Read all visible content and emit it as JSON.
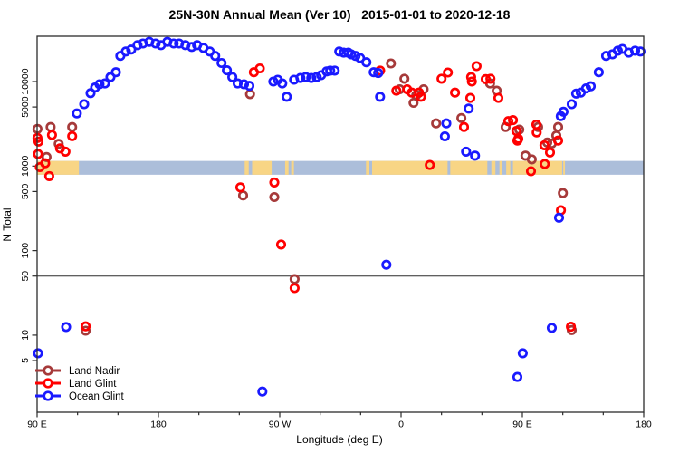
{
  "chart_data": {
    "type": "scatter",
    "title": "25N-30N Annual Mean (Ver 10)   2015-01-01 to 2020-12-18",
    "xlabel": "Longitude (deg E)",
    "ylabel": "N Total",
    "y_scale": "log",
    "x_domain": [
      90,
      540
    ],
    "y_domain": [
      1.225,
      34356
    ],
    "x_ticks": [
      {
        "value": 90,
        "label": "90 E"
      },
      {
        "value": 180,
        "label": "180"
      },
      {
        "value": 270,
        "label": "90 W"
      },
      {
        "value": 360,
        "label": "0"
      },
      {
        "value": 450,
        "label": "90 E"
      },
      {
        "value": 540,
        "label": "180"
      }
    ],
    "x_minor_ticks": [
      120,
      150,
      210,
      240,
      300,
      330,
      390,
      420,
      480,
      510
    ],
    "y_ticks": [
      5,
      10,
      50,
      100,
      500,
      1000,
      5000,
      10000
    ],
    "reference_line": 50,
    "map_band": {
      "value_range": [
        790,
        1150
      ],
      "ocean_color": "#ACBEDA",
      "land_color": "#F8D585",
      "land_segments": [
        [
          90,
          121
        ],
        [
          244,
          247
        ],
        [
          249.5,
          264
        ],
        [
          274,
          276.5
        ],
        [
          278.5,
          280.5
        ],
        [
          334,
          336.5
        ],
        [
          338.5,
          394.5
        ],
        [
          396.5,
          424
        ],
        [
          427,
          430
        ],
        [
          433,
          435
        ],
        [
          438,
          441
        ],
        [
          443,
          479.5
        ],
        [
          480.3,
          481.6
        ]
      ]
    },
    "series": [
      {
        "name": "Land Nadir",
        "color": "#A63A3A",
        "points": [
          [
            90.3,
            2750
          ],
          [
            97,
            1280
          ],
          [
            100,
            2900
          ],
          [
            106,
            1830
          ],
          [
            116,
            2900
          ],
          [
            126,
            11.3
          ],
          [
            248,
            7100
          ],
          [
            242.8,
            450
          ],
          [
            266,
            430
          ],
          [
            281,
            46
          ],
          [
            352.5,
            16400
          ],
          [
            359,
            8100
          ],
          [
            362.5,
            10800
          ],
          [
            369.3,
            5600
          ],
          [
            371.3,
            6900
          ],
          [
            376.7,
            8100
          ],
          [
            386,
            3200
          ],
          [
            404.7,
            3700
          ],
          [
            426,
            9500
          ],
          [
            430.9,
            7800
          ],
          [
            437.6,
            2900
          ],
          [
            447.7,
            2700
          ],
          [
            452.3,
            1330
          ],
          [
            457,
            1200
          ],
          [
            461.7,
            2900
          ],
          [
            468.5,
            1900
          ],
          [
            471.8,
            1850
          ],
          [
            475.2,
            2300
          ],
          [
            476.5,
            2900
          ],
          [
            480,
            480
          ],
          [
            486.6,
            11.5
          ]
        ]
      },
      {
        "name": "Land Glint",
        "color": "#FF0000",
        "points": [
          [
            90.3,
            2150
          ],
          [
            90.7,
            1390
          ],
          [
            91,
            1950
          ],
          [
            92,
            970
          ],
          [
            96,
            1080
          ],
          [
            99,
            760
          ],
          [
            101,
            2330
          ],
          [
            107,
            1620
          ],
          [
            111,
            1480
          ],
          [
            116,
            2260
          ],
          [
            126,
            12.7
          ],
          [
            240.8,
            560
          ],
          [
            250.8,
            12900
          ],
          [
            255.2,
            14300
          ],
          [
            266,
            640
          ],
          [
            271,
            118
          ],
          [
            281,
            36
          ],
          [
            344.5,
            13500
          ],
          [
            356.5,
            7800
          ],
          [
            364.5,
            8100
          ],
          [
            368,
            7400
          ],
          [
            373.3,
            7400
          ],
          [
            374.7,
            6600
          ],
          [
            381.3,
            1030
          ],
          [
            390,
            10800
          ],
          [
            394.7,
            12800
          ],
          [
            400,
            7400
          ],
          [
            406.7,
            2900
          ],
          [
            411.4,
            6400
          ],
          [
            412,
            11300
          ],
          [
            412.5,
            10000
          ],
          [
            416,
            15200
          ],
          [
            422.8,
            10700
          ],
          [
            426.3,
            10800
          ],
          [
            432.2,
            6400
          ],
          [
            439.6,
            3400
          ],
          [
            443,
            3500
          ],
          [
            445.6,
            2600
          ],
          [
            446.3,
            2000
          ],
          [
            447,
            2100
          ],
          [
            456.4,
            870
          ],
          [
            460.4,
            3100
          ],
          [
            460.6,
            2500
          ],
          [
            466.4,
            1760
          ],
          [
            466.6,
            1060
          ],
          [
            470.5,
            1450
          ],
          [
            476.5,
            2000
          ],
          [
            478.6,
            300
          ],
          [
            486,
            12.6
          ]
        ]
      },
      {
        "name": "Ocean Glint",
        "color": "#1A1AFF",
        "points": [
          [
            90.7,
            6.1
          ],
          [
            111.5,
            12.5
          ],
          [
            119.5,
            4200
          ],
          [
            124.9,
            5400
          ],
          [
            129.6,
            7300
          ],
          [
            133,
            8500
          ],
          [
            136.3,
            9300
          ],
          [
            140.3,
            9500
          ],
          [
            144.4,
            11300
          ],
          [
            148.4,
            12900
          ],
          [
            151.7,
            20100
          ],
          [
            155.8,
            22700
          ],
          [
            159.8,
            23900
          ],
          [
            164.5,
            27000
          ],
          [
            168.5,
            28200
          ],
          [
            173.2,
            29500
          ],
          [
            177.9,
            28200
          ],
          [
            181.9,
            27000
          ],
          [
            186.6,
            29500
          ],
          [
            191.3,
            28200
          ],
          [
            195.3,
            28200
          ],
          [
            200,
            27000
          ],
          [
            204.7,
            25700
          ],
          [
            208.7,
            27000
          ],
          [
            213.4,
            25000
          ],
          [
            218.1,
            22700
          ],
          [
            222.1,
            20100
          ],
          [
            226.8,
            16600
          ],
          [
            230.8,
            13600
          ],
          [
            234.8,
            11300
          ],
          [
            238.8,
            9500
          ],
          [
            243.5,
            9300
          ],
          [
            247.5,
            8900
          ],
          [
            257.1,
            2.15
          ],
          [
            265.2,
            10000
          ],
          [
            268.5,
            10500
          ],
          [
            271.9,
            9500
          ],
          [
            275.2,
            6600
          ],
          [
            280.6,
            10500
          ],
          [
            285.3,
            11000
          ],
          [
            289.3,
            11300
          ],
          [
            293.4,
            11000
          ],
          [
            297.4,
            11300
          ],
          [
            300.7,
            11900
          ],
          [
            304.8,
            13200
          ],
          [
            307.4,
            13500
          ],
          [
            310.8,
            13500
          ],
          [
            314.1,
            22700
          ],
          [
            317.5,
            22000
          ],
          [
            320.8,
            22000
          ],
          [
            322.9,
            21000
          ],
          [
            326.2,
            20100
          ],
          [
            329.6,
            19000
          ],
          [
            334.3,
            16900
          ],
          [
            339.7,
            12900
          ],
          [
            343,
            12600
          ],
          [
            344.4,
            6600
          ],
          [
            349.1,
            68
          ],
          [
            392.5,
            2250
          ],
          [
            393.6,
            3200
          ],
          [
            408.2,
            1480
          ],
          [
            410.2,
            4800
          ],
          [
            414.9,
            1330
          ],
          [
            446.3,
            3.2
          ],
          [
            450.3,
            6.1
          ],
          [
            471.8,
            12.2
          ],
          [
            477.2,
            245
          ],
          [
            478.5,
            3900
          ],
          [
            480.5,
            4400
          ],
          [
            486.6,
            5400
          ],
          [
            489.9,
            7200
          ],
          [
            493.3,
            7400
          ],
          [
            497.3,
            8300
          ],
          [
            500.7,
            8800
          ],
          [
            506.7,
            12900
          ],
          [
            512.1,
            20100
          ],
          [
            516.8,
            21000
          ],
          [
            520.8,
            23200
          ],
          [
            524.2,
            24300
          ],
          [
            528.9,
            22000
          ],
          [
            533.6,
            23200
          ],
          [
            537.6,
            22700
          ]
        ]
      }
    ],
    "legend_position": "bottom-left"
  }
}
